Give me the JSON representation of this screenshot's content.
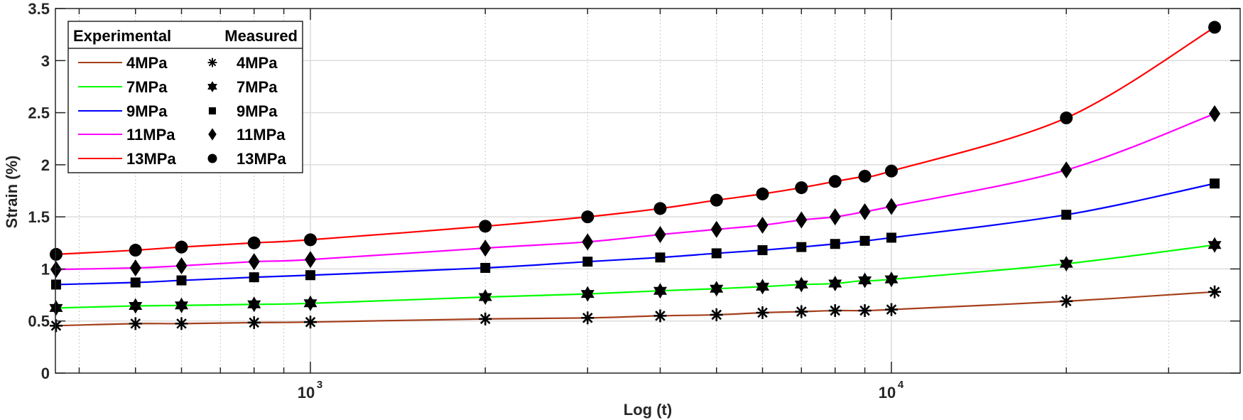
{
  "chart_data": {
    "type": "line",
    "title": "",
    "xlabel": "Log (t)",
    "ylabel": "Strain (%)",
    "xscale": "log",
    "xlim": [
      365,
      45000
    ],
    "ylim": [
      0,
      3.5
    ],
    "grid": true,
    "y_ticks": [
      0,
      0.5,
      1,
      1.5,
      2,
      2.5,
      3,
      3.5
    ],
    "y_tick_labels": [
      "0",
      "0.5",
      "1",
      "1.5",
      "2",
      "2.5",
      "3",
      "3.5"
    ],
    "x_major_ticks": [
      1000,
      10000
    ],
    "x_tick_labels": [
      {
        "base": "10",
        "exp": "3"
      },
      {
        "base": "10",
        "exp": "4"
      }
    ],
    "x_minor_ticks": [
      400,
      500,
      600,
      700,
      800,
      900,
      2000,
      3000,
      4000,
      5000,
      6000,
      7000,
      8000,
      9000,
      20000,
      30000,
      40000
    ],
    "x": [
      365,
      500,
      600,
      800,
      1000,
      2000,
      3000,
      4000,
      5000,
      6000,
      7000,
      8000,
      9000,
      10000,
      20000,
      36000
    ],
    "legend": {
      "position": "upper left",
      "header_left": "Experimental",
      "header_right": "Measured"
    },
    "series": [
      {
        "name": "4MPa",
        "color": "#a5401c",
        "marker": "asterisk",
        "values": [
          0.455,
          0.475,
          0.475,
          0.485,
          0.49,
          0.52,
          0.53,
          0.55,
          0.56,
          0.58,
          0.59,
          0.6,
          0.6,
          0.61,
          0.69,
          0.78
        ]
      },
      {
        "name": "7MPa",
        "color": "#00ff00",
        "marker": "hexagram",
        "values": [
          0.625,
          0.645,
          0.65,
          0.66,
          0.67,
          0.73,
          0.76,
          0.79,
          0.81,
          0.83,
          0.85,
          0.86,
          0.89,
          0.9,
          1.05,
          1.23
        ]
      },
      {
        "name": "9MPa",
        "color": "#0000ff",
        "marker": "square",
        "values": [
          0.85,
          0.87,
          0.89,
          0.92,
          0.94,
          1.01,
          1.07,
          1.11,
          1.15,
          1.18,
          1.21,
          1.24,
          1.27,
          1.3,
          1.52,
          1.82
        ]
      },
      {
        "name": "11MPa",
        "color": "#ff00ff",
        "marker": "diamond",
        "values": [
          0.995,
          1.01,
          1.03,
          1.07,
          1.09,
          1.2,
          1.26,
          1.33,
          1.38,
          1.42,
          1.47,
          1.5,
          1.55,
          1.6,
          1.95,
          2.49
        ]
      },
      {
        "name": "13MPa",
        "color": "#ff0000",
        "marker": "circle",
        "values": [
          1.14,
          1.18,
          1.21,
          1.25,
          1.28,
          1.41,
          1.5,
          1.58,
          1.66,
          1.72,
          1.78,
          1.84,
          1.89,
          1.94,
          2.45,
          3.32
        ]
      }
    ]
  }
}
